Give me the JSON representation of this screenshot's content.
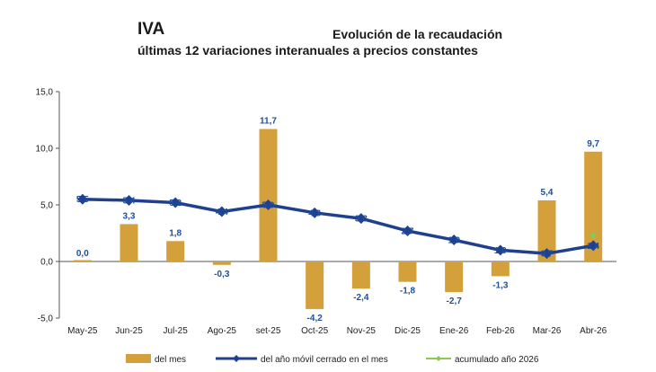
{
  "header": {
    "title_left": "IVA",
    "title_right": "Evolución de la recaudación",
    "subtitle": "últimas 12 variaciones interanuales a precios constantes"
  },
  "colors": {
    "bar": "#d4a03c",
    "line": "#1f3f8f",
    "marker": "#1f3f8f",
    "accum": "#8cc850"
  },
  "chart_data": {
    "type": "bar",
    "categories": [
      "May-25",
      "Jun-25",
      "Jul-25",
      "Ago-25",
      "set-25",
      "Oct-25",
      "Nov-25",
      "Dic-25",
      "Ene-26",
      "Feb-26",
      "Mar-26",
      "Abr-26"
    ],
    "ylim": [
      -5,
      15
    ],
    "yticks": [
      "-5,0",
      "0,0",
      "5,0",
      "10,0",
      "15,0"
    ],
    "grid": false,
    "legend_position": "bottom",
    "series": [
      {
        "name": "del mes",
        "type": "bar",
        "values": [
          0.0,
          3.3,
          1.8,
          -0.3,
          11.7,
          -4.2,
          -2.4,
          -1.8,
          -2.7,
          -1.3,
          5.4,
          9.7
        ],
        "labels": [
          "0,0",
          "3,3",
          "1,8",
          "-0,3",
          "11,7",
          "-4,2",
          "-2,4",
          "-1,8",
          "-2,7",
          "-1,3",
          "5,4",
          "9,7"
        ]
      },
      {
        "name": "del año móvil cerrado en el mes",
        "type": "line",
        "values": [
          5.5,
          5.4,
          5.2,
          4.4,
          5.0,
          4.3,
          3.8,
          2.7,
          1.9,
          1.0,
          0.7,
          1.4
        ],
        "labels": [
          "5,5",
          "5,4",
          "5,2",
          "4,4",
          "5,0",
          "4,3",
          "3,8",
          "2,7",
          "1,9",
          "1,0",
          "0,7",
          "1,4"
        ]
      },
      {
        "name": "acumulado año 2026",
        "type": "line",
        "values": [
          null,
          null,
          null,
          null,
          null,
          null,
          null,
          null,
          null,
          null,
          null,
          2.3
        ]
      }
    ]
  }
}
